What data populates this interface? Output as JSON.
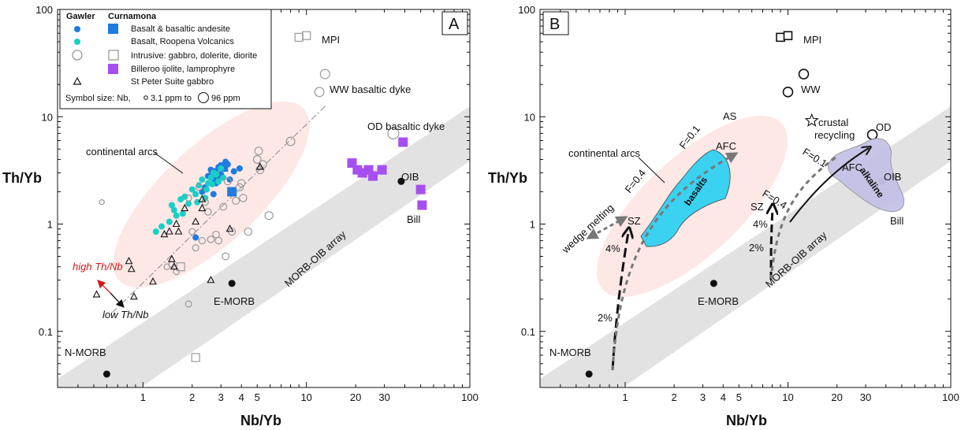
{
  "chart_data": [
    {
      "type": "scatter",
      "panel": "A",
      "xlabel": "Nb/Yb",
      "ylabel": "Th/Yb",
      "xscale": "log",
      "yscale": "log",
      "xlim": [
        0.3,
        100
      ],
      "ylim": [
        0.03,
        100
      ],
      "x_ticks": [
        "1",
        "2",
        "3",
        "4",
        "5",
        "10",
        "20",
        "30",
        "100"
      ],
      "y_ticks": [
        "0.1",
        "1",
        "10",
        "100"
      ],
      "legend": {
        "placement": "top-left",
        "headers": [
          "Gawler",
          "Curnamona"
        ],
        "entries": [
          "Basalt & basaltic andesite",
          "Basalt, Roopena Volcanics",
          "Intrusive: gabbro, dolerite, diorite",
          "Billeroo ijolite, lamprophyre",
          "St Peter Suite gabbro"
        ],
        "size_note": "Symbol size: Nb,",
        "size_min": "3.1 ppm to",
        "size_max": "96 ppm"
      },
      "annotations": {
        "continental_arcs": "continental arcs",
        "morb_oib_array": "MORB-OIB array",
        "mpi": "MPI",
        "ww_dyke": "WW basaltic dyke",
        "od_dyke": "OD basaltic dyke",
        "oib": "OIB",
        "bill": "Bill",
        "e_morb": "E-MORB",
        "n_morb": "N-MORB",
        "high_th_nb": "high Th/Nb",
        "low_th_nb": "low Th/Nb"
      },
      "reference_points": [
        {
          "label": "N-MORB",
          "x": 0.6,
          "y": 0.04
        },
        {
          "label": "E-MORB",
          "x": 3.5,
          "y": 0.28
        },
        {
          "label": "OIB",
          "x": 38,
          "y": 2.5
        }
      ],
      "series": [
        {
          "name": "Basalt & basaltic andesite",
          "group": "Gawler",
          "marker": "circle",
          "color": "#1e7be0",
          "points": [
            [
              2.1,
              0.75
            ],
            [
              2.3,
              2.0
            ],
            [
              2.5,
              2.8
            ],
            [
              2.6,
              3.2
            ],
            [
              2.8,
              2.4
            ],
            [
              2.9,
              3.4
            ],
            [
              3.0,
              2.9
            ],
            [
              3.2,
              3.8
            ],
            [
              3.4,
              2.6
            ],
            [
              3.6,
              3.1
            ],
            [
              3.9,
              3.3
            ],
            [
              2.7,
              1.9
            ],
            [
              2.4,
              2.2
            ],
            [
              3.3,
              3.6
            ]
          ]
        },
        {
          "name": "Basalt & basaltic andesite",
          "group": "Curnamona",
          "marker": "square",
          "color": "#1e7be0",
          "points": [
            [
              2.7,
              3.0
            ],
            [
              3.1,
              3.4
            ],
            [
              3.5,
              2.0
            ],
            [
              2.8,
              2.6
            ]
          ]
        },
        {
          "name": "Basalt, Roopena Volcanics",
          "group": "Gawler",
          "marker": "circle",
          "color": "#19cfc6",
          "points": [
            [
              1.2,
              0.85
            ],
            [
              1.3,
              0.95
            ],
            [
              1.45,
              1.05
            ],
            [
              1.5,
              1.5
            ],
            [
              1.6,
              1.2
            ],
            [
              1.7,
              1.7
            ],
            [
              1.8,
              1.8
            ],
            [
              1.9,
              1.55
            ],
            [
              2.0,
              2.1
            ],
            [
              2.1,
              1.9
            ],
            [
              2.2,
              2.3
            ],
            [
              2.3,
              2.6
            ],
            [
              2.4,
              1.75
            ],
            [
              2.5,
              2.4
            ],
            [
              2.6,
              2.7
            ],
            [
              2.7,
              3.0
            ],
            [
              2.8,
              2.9
            ],
            [
              2.9,
              2.5
            ],
            [
              3.0,
              3.3
            ],
            [
              3.1,
              2.7
            ],
            [
              1.75,
              1.25
            ],
            [
              1.55,
              1.35
            ],
            [
              2.15,
              1.6
            ],
            [
              2.45,
              2.1
            ],
            [
              2.65,
              2.35
            ]
          ]
        },
        {
          "name": "Intrusive: gabbro, dolerite, diorite",
          "group": "Gawler",
          "marker": "open-circle",
          "color": "#999999",
          "points": [
            [
              0.56,
              1.6
            ],
            [
              1.4,
              0.4
            ],
            [
              1.5,
              0.42
            ],
            [
              1.6,
              0.36
            ],
            [
              1.9,
              0.18
            ],
            [
              2.0,
              0.85
            ],
            [
              2.1,
              0.6
            ],
            [
              2.3,
              0.7
            ],
            [
              2.5,
              1.3
            ],
            [
              2.6,
              0.72
            ],
            [
              2.8,
              0.8
            ],
            [
              2.9,
              0.7
            ],
            [
              3.1,
              1.45
            ],
            [
              3.2,
              0.5
            ],
            [
              3.3,
              2.5
            ],
            [
              3.5,
              0.85
            ],
            [
              3.7,
              1.65
            ],
            [
              3.9,
              2.2
            ],
            [
              4.0,
              2.4
            ],
            [
              4.4,
              0.85
            ],
            [
              4.1,
              1.75
            ],
            [
              5.2,
              3.2
            ],
            [
              5.0,
              4.0
            ],
            [
              5.1,
              4.8
            ],
            [
              5.4,
              3.6
            ],
            [
              5.9,
              1.2
            ],
            [
              8.0,
              5.9
            ],
            [
              12.0,
              17.0
            ],
            [
              13.0,
              25.0
            ],
            [
              34.0,
              7.0
            ],
            [
              1.9,
              1.75
            ],
            [
              2.2,
              2.2
            ],
            [
              2.4,
              1.6
            ]
          ]
        },
        {
          "name": "Intrusive: gabbro, dolerite, diorite",
          "group": "Curnamona",
          "marker": "open-square",
          "color": "#999999",
          "points": [
            [
              9.0,
              55.0
            ],
            [
              10.0,
              57.0
            ],
            [
              2.1,
              0.057
            ],
            [
              1.7,
              0.4
            ]
          ]
        },
        {
          "name": "Billeroo ijolite, lamprophyre",
          "group": "Curnamona",
          "marker": "square",
          "color": "#a64ff0",
          "points": [
            [
              19.0,
              3.7
            ],
            [
              20.5,
              3.2
            ],
            [
              22.0,
              3.0
            ],
            [
              24.0,
              3.2
            ],
            [
              25.5,
              2.8
            ],
            [
              29.0,
              3.2
            ],
            [
              39.0,
              5.8
            ],
            [
              50.0,
              2.1
            ],
            [
              51.0,
              1.5
            ]
          ]
        },
        {
          "name": "St Peter Suite gabbro",
          "group": "Gawler",
          "marker": "open-triangle",
          "color": "#111111",
          "points": [
            [
              0.52,
              0.22
            ],
            [
              0.82,
              0.45
            ],
            [
              0.85,
              0.38
            ],
            [
              0.88,
              0.21
            ],
            [
              1.15,
              0.29
            ],
            [
              1.35,
              0.8
            ],
            [
              1.5,
              0.47
            ],
            [
              1.55,
              0.4
            ],
            [
              1.6,
              1.0
            ],
            [
              1.65,
              0.85
            ],
            [
              1.8,
              1.4
            ],
            [
              2.1,
              1.05
            ],
            [
              2.3,
              1.4
            ],
            [
              2.6,
              0.3
            ],
            [
              3.4,
              0.9
            ],
            [
              5.2,
              3.4
            ],
            [
              2.3,
              1.7
            ],
            [
              1.45,
              0.85
            ]
          ]
        }
      ]
    },
    {
      "type": "scatter",
      "panel": "B",
      "xlabel": "Nb/Yb",
      "ylabel": "Th/Yb",
      "xscale": "log",
      "yscale": "log",
      "xlim": [
        0.3,
        100
      ],
      "ylim": [
        0.03,
        100
      ],
      "x_ticks": [
        "1",
        "2",
        "3",
        "4",
        "5",
        "10",
        "20",
        "30",
        "100"
      ],
      "y_ticks": [
        "0.1",
        "1",
        "10",
        "100"
      ],
      "annotations": {
        "continental_arcs": "continental arcs",
        "basalts": "basalts",
        "alkaline": "alkaline",
        "wedge_melting": "wedge melting",
        "sz1": "SZ",
        "sz2": "SZ",
        "afc1": "AFC",
        "afc2": "AFC",
        "f04a": "F=0.4",
        "f01a": "F=0.1",
        "f04b": "F=0.4",
        "f01b": "F=0.1",
        "pct4a": "4%",
        "pct2a": "2%",
        "pct4b": "4%",
        "pct2b": "2%",
        "as": "AS",
        "crustal_recycling_1": "crustal",
        "crustal_recycling_2": "recycling",
        "mpi": "MPI",
        "ww": "WW",
        "od": "OD",
        "oib": "OIB",
        "bill": "Bill",
        "e_morb": "E-MORB",
        "n_morb": "N-MORB",
        "morb_oib_array": "MORB-OIB array"
      },
      "reference_points": [
        {
          "label": "N-MORB",
          "x": 0.6,
          "y": 0.04
        },
        {
          "label": "E-MORB",
          "x": 3.5,
          "y": 0.28
        },
        {
          "label": "OIB",
          "x": 38,
          "y": 2.5
        }
      ],
      "series": [
        {
          "name": "MPI",
          "marker": "open-square",
          "color": "#111111",
          "points": [
            [
              9.0,
              55.0
            ],
            [
              10.0,
              57.0
            ]
          ]
        },
        {
          "name": "WW",
          "marker": "open-circle",
          "color": "#111111",
          "points": [
            [
              10.0,
              17.0
            ],
            [
              12.5,
              25.0
            ]
          ]
        },
        {
          "name": "OD",
          "marker": "open-circle",
          "color": "#111111",
          "points": [
            [
              33.0,
              6.8
            ]
          ]
        },
        {
          "name": "AS",
          "marker": "open-star",
          "color": "#111111",
          "points": [
            [
              14.0,
              9.2
            ]
          ]
        }
      ]
    }
  ],
  "panel_tags": {
    "a": "A",
    "b": "B"
  },
  "colors": {
    "arcs": "#fde8e6",
    "array": "#e2e2e2",
    "basalts": "#3bd1f1",
    "alkaline": "#c4c2e6",
    "gawler_blue": "#1e7be0",
    "roopena_cyan": "#19cfc6",
    "billeroo_purple": "#a64ff0",
    "red_label": "#d11a1a"
  }
}
